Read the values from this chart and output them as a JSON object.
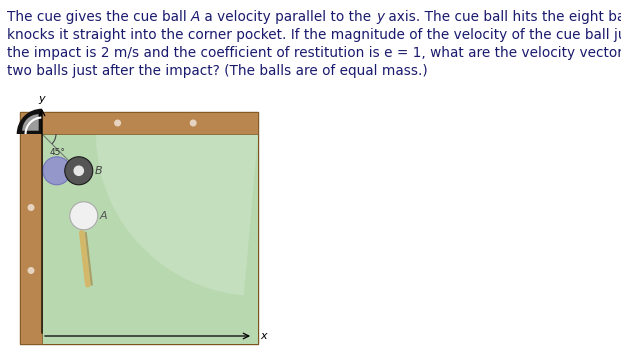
{
  "fig_width": 6.21,
  "fig_height": 3.51,
  "dpi": 100,
  "background_color": "#ffffff",
  "felt_color": "#b8d8b0",
  "rail_color": "#b8864e",
  "rail_dark": "#8a6030",
  "pocket_color": "#222222",
  "axis_label_x": "x",
  "axis_label_y": "y",
  "angle_label": "45°",
  "ball_A_color": "#f0f0f0",
  "ball_B_color": "#555555",
  "ball_phantom_color": "#9090cc",
  "cue_color_light": "#d4b86a",
  "cue_color_dark": "#a07830",
  "text_color": "#1a1a6e",
  "text_fontsize": 9.8,
  "highlight_color": "#d4ead4"
}
